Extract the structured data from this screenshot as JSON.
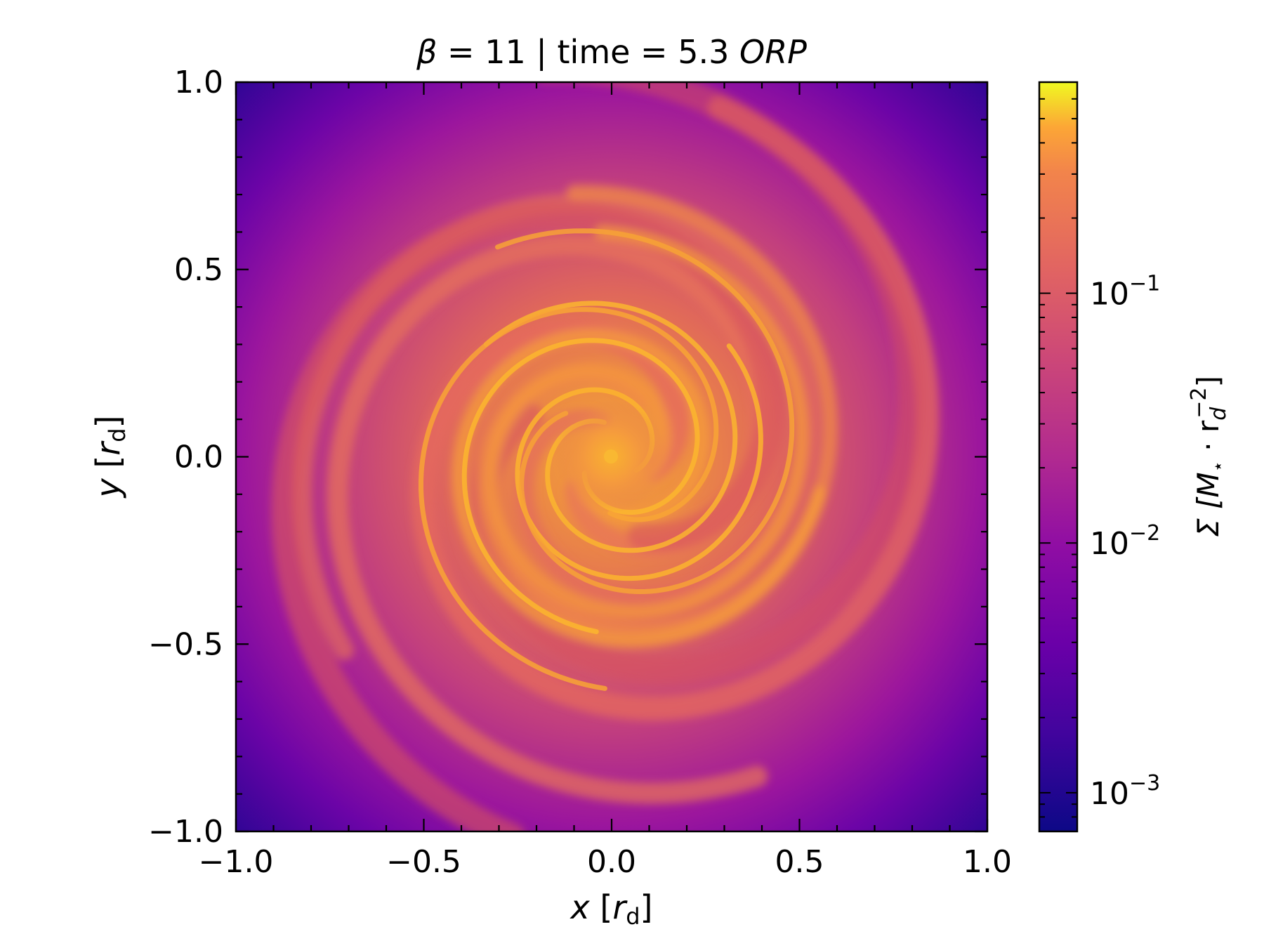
{
  "chart_data": {
    "type": "heatmap",
    "title": {
      "beta_symbol": "β",
      "beta_rest": " = 11 | time = 5.3 ",
      "unit": "ORP"
    },
    "xlabel": {
      "var": "x",
      "open": " [",
      "sym": "r",
      "sub": "d",
      "close": "]"
    },
    "ylabel": {
      "var": "y",
      "open": " [",
      "sym": "r",
      "sub": "d",
      "close": "]"
    },
    "xlim": [
      -1.0,
      1.0
    ],
    "ylim": [
      -1.0,
      1.0
    ],
    "xticks": [
      {
        "value": -1.0,
        "label": "−1.0"
      },
      {
        "value": -0.5,
        "label": "−0.5"
      },
      {
        "value": 0.0,
        "label": "0.0"
      },
      {
        "value": 0.5,
        "label": "0.5"
      },
      {
        "value": 1.0,
        "label": "1.0"
      }
    ],
    "yticks": [
      {
        "value": -1.0,
        "label": "−1.0"
      },
      {
        "value": -0.5,
        "label": "−0.5"
      },
      {
        "value": 0.0,
        "label": "0.0"
      },
      {
        "value": 0.5,
        "label": "0.5"
      },
      {
        "value": 1.0,
        "label": "1.0"
      }
    ],
    "colormap": "plasma",
    "colorbar": {
      "label": {
        "prefix": "Σ [M",
        "star": "⋆",
        "mid": " · r",
        "sub": "d",
        "sup": "−2",
        "close": "]"
      },
      "scale": "log",
      "range": [
        0.0007,
        0.7
      ],
      "ticks": [
        {
          "value": 0.001,
          "base": "10",
          "exp": "−3"
        },
        {
          "value": 0.01,
          "base": "10",
          "exp": "−2"
        },
        {
          "value": 0.1,
          "base": "10",
          "exp": "−1"
        }
      ]
    },
    "colors": [
      "#0d0887",
      "#6a00a8",
      "#b12a90",
      "#e16462",
      "#fca636",
      "#f0f921"
    ]
  }
}
